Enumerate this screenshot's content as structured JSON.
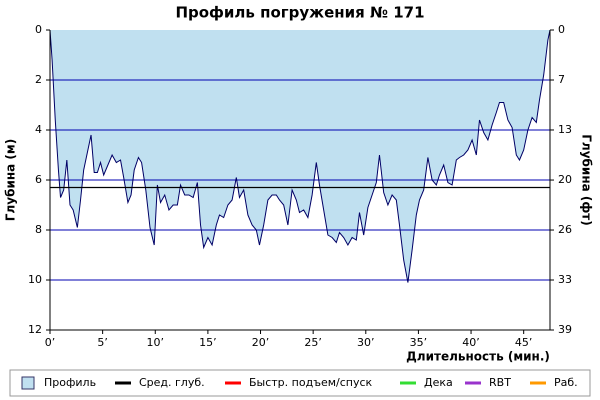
{
  "chart_data": {
    "type": "area",
    "title": "Профиль погружения № 171",
    "x_label": "Длительность (мин.)",
    "y_label": "Глубина (м)",
    "y2_label": "Глубина (фт)",
    "xlim": [
      0,
      47.5
    ],
    "xticks": [
      {
        "value": 0,
        "label": "0’"
      },
      {
        "value": 5,
        "label": "5’"
      },
      {
        "value": 10,
        "label": "10’"
      },
      {
        "value": 15,
        "label": "15’"
      },
      {
        "value": 20,
        "label": "20’"
      },
      {
        "value": 25,
        "label": "25’"
      },
      {
        "value": 30,
        "label": "30’"
      },
      {
        "value": 35,
        "label": "35’"
      },
      {
        "value": 40,
        "label": "40’"
      },
      {
        "value": 45,
        "label": "45’"
      }
    ],
    "ylim": [
      0,
      12
    ],
    "y_inverted": true,
    "yticks": [
      0,
      2,
      4,
      6,
      8,
      10,
      12
    ],
    "y2lim": [
      0,
      39.37
    ],
    "y2ticks": [
      {
        "value": 0,
        "label": "0"
      },
      {
        "value": 6.56,
        "label": "7"
      },
      {
        "value": 13.12,
        "label": "13"
      },
      {
        "value": 19.69,
        "label": "20"
      },
      {
        "value": 26.25,
        "label": "26"
      },
      {
        "value": 32.81,
        "label": "33"
      },
      {
        "value": 39.37,
        "label": "39"
      }
    ],
    "grid": true,
    "grid_color": "#0000b0",
    "series": [
      {
        "name": "Профиль",
        "color": "#c0e0f0",
        "line_color": "#000066",
        "x": [
          0,
          0.2,
          0.5,
          0.8,
          1.0,
          1.3,
          1.6,
          1.9,
          2.2,
          2.6,
          2.9,
          3.2,
          3.6,
          3.9,
          4.2,
          4.5,
          4.8,
          5.1,
          5.5,
          5.9,
          6.3,
          6.7,
          7.0,
          7.4,
          7.7,
          8.0,
          8.4,
          8.7,
          9.1,
          9.5,
          9.9,
          10.2,
          10.5,
          10.9,
          11.3,
          11.7,
          12.1,
          12.4,
          12.8,
          13.2,
          13.6,
          14.0,
          14.3,
          14.6,
          15.0,
          15.4,
          15.8,
          16.1,
          16.5,
          16.9,
          17.3,
          17.7,
          18.0,
          18.4,
          18.8,
          19.2,
          19.6,
          19.9,
          20.3,
          20.7,
          21.1,
          21.5,
          21.8,
          22.2,
          22.6,
          23.0,
          23.4,
          23.7,
          24.1,
          24.5,
          24.9,
          25.3,
          25.6,
          26.0,
          26.4,
          26.8,
          27.2,
          27.5,
          27.9,
          28.3,
          28.7,
          29.1,
          29.4,
          29.8,
          30.2,
          30.6,
          31.0,
          31.3,
          31.7,
          32.1,
          32.5,
          32.9,
          33.2,
          33.6,
          34.0,
          34.4,
          34.8,
          35.1,
          35.5,
          35.9,
          36.3,
          36.7,
          37.0,
          37.4,
          37.8,
          38.2,
          38.6,
          38.9,
          39.3,
          39.7,
          40.1,
          40.5,
          40.8,
          41.2,
          41.6,
          42.0,
          42.4,
          42.7,
          43.1,
          43.5,
          43.9,
          44.3,
          44.6,
          45.0,
          45.4,
          45.8,
          46.2,
          46.5,
          46.9,
          47.3,
          47.5
        ],
        "values": [
          0,
          1.2,
          3.6,
          5.6,
          6.7,
          6.4,
          5.2,
          7.0,
          7.2,
          7.9,
          6.8,
          5.6,
          4.8,
          4.2,
          5.7,
          5.7,
          5.3,
          5.8,
          5.4,
          5.0,
          5.3,
          5.2,
          5.9,
          6.9,
          6.6,
          5.6,
          5.1,
          5.3,
          6.4,
          7.9,
          8.6,
          6.2,
          6.9,
          6.6,
          7.2,
          7.0,
          7.0,
          6.2,
          6.6,
          6.6,
          6.7,
          6.1,
          7.8,
          8.7,
          8.3,
          8.6,
          7.8,
          7.4,
          7.5,
          7.0,
          6.8,
          5.9,
          6.7,
          6.4,
          7.4,
          7.8,
          8.0,
          8.6,
          7.8,
          6.8,
          6.6,
          6.6,
          6.8,
          7.0,
          7.8,
          6.4,
          6.8,
          7.3,
          7.2,
          7.5,
          6.6,
          5.3,
          6.2,
          7.2,
          8.2,
          8.3,
          8.5,
          8.1,
          8.3,
          8.6,
          8.3,
          8.4,
          7.3,
          8.2,
          7.1,
          6.6,
          6.1,
          5.0,
          6.5,
          7.0,
          6.6,
          6.8,
          7.8,
          9.2,
          10.1,
          8.8,
          7.4,
          6.8,
          6.4,
          5.1,
          6.0,
          6.2,
          5.8,
          5.4,
          6.1,
          6.2,
          5.2,
          5.1,
          5.0,
          4.8,
          4.4,
          5.0,
          3.6,
          4.1,
          4.4,
          3.8,
          3.3,
          2.9,
          2.9,
          3.6,
          3.9,
          5.0,
          5.2,
          4.8,
          4.0,
          3.5,
          3.7,
          2.8,
          1.8,
          0.4,
          0
        ]
      }
    ],
    "average": {
      "name": "Сред. глуб.",
      "color": "#000000",
      "value": 6.3
    },
    "legend_extra": [
      {
        "name": "Быстр. подъем/спуск",
        "color": "#ff0000"
      },
      {
        "name": "Дека",
        "color": "#33dd33"
      },
      {
        "name": "RBT",
        "color": "#9933cc"
      },
      {
        "name": "Раб.",
        "color": "#ff9900"
      }
    ]
  }
}
